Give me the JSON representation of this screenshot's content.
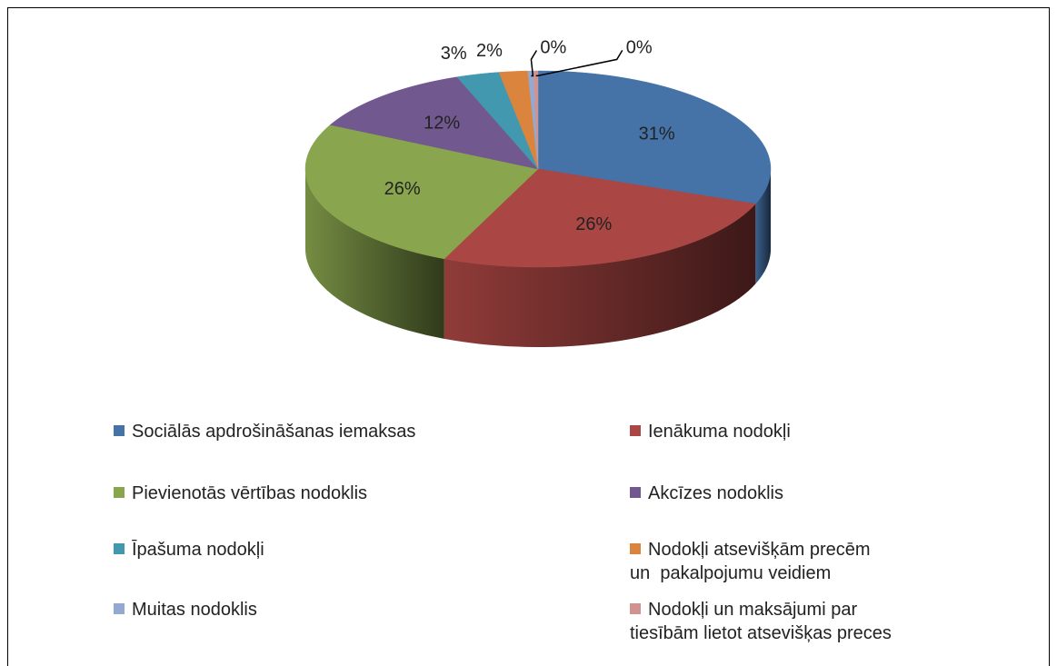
{
  "chart_data": {
    "type": "pie",
    "categories": [
      "Sociālās apdrošināšanas iemaksas",
      "Ienākuma nodokļi",
      "Pievienotās vērtības nodoklis",
      "Akcīzes nodoklis",
      "Īpašuma nodokļi",
      "Nodokļi atsevišķām precēm\nun  pakalpojumu veidiem",
      "Muitas nodoklis",
      "Nodokļi un maksājumi par\ntiesībām lietot atsevišķas preces"
    ],
    "values": [
      31,
      26,
      26,
      12,
      3,
      2,
      0.4,
      0.3
    ],
    "value_labels": [
      "31%",
      "26%",
      "26%",
      "12%",
      "3%",
      "2%",
      "0%",
      "0%"
    ],
    "colors": [
      "#4572a7",
      "#aa4643",
      "#89a54e",
      "#71588f",
      "#4198af",
      "#db843d",
      "#93a9cf",
      "#d19392"
    ],
    "legend": "bottom"
  }
}
